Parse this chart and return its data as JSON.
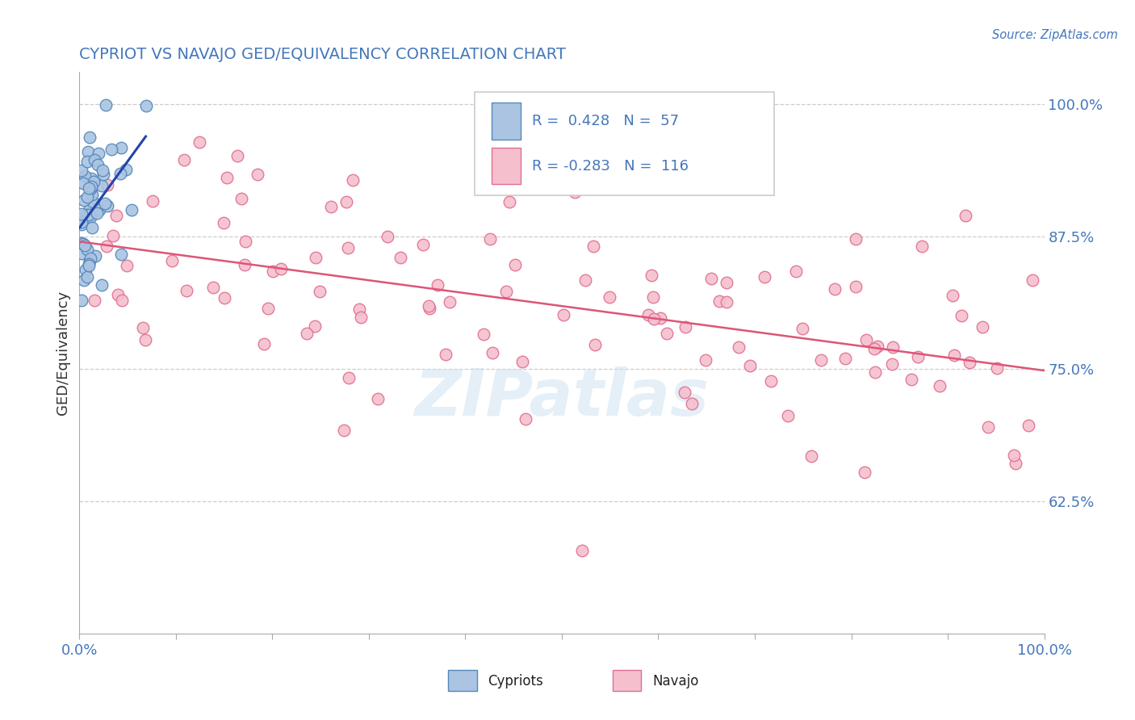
{
  "title": "CYPRIOT VS NAVAJO GED/EQUIVALENCY CORRELATION CHART",
  "source_text": "Source: ZipAtlas.com",
  "ylabel": "GED/Equivalency",
  "x_min": 0.0,
  "x_max": 1.0,
  "y_min": 0.5,
  "y_max": 1.03,
  "y_tick_labels_right": [
    "62.5%",
    "75.0%",
    "87.5%",
    "100.0%"
  ],
  "y_tick_positions_right": [
    0.625,
    0.75,
    0.875,
    1.0
  ],
  "legend_r_cypriot": "0.428",
  "legend_n_cypriot": "57",
  "legend_r_navajo": "-0.283",
  "legend_n_navajo": "116",
  "cypriot_color": "#aac4e2",
  "navajo_color": "#f5bfce",
  "cypriot_edge_color": "#5588bb",
  "navajo_edge_color": "#e07090",
  "trend_cypriot_color": "#2244aa",
  "trend_navajo_color": "#dd5577",
  "background_color": "#ffffff",
  "grid_color": "#cccccc",
  "title_color": "#4477bb",
  "label_color": "#4477bb",
  "watermark_color": "#cce0f0",
  "watermark_text": "ZIPatlas"
}
